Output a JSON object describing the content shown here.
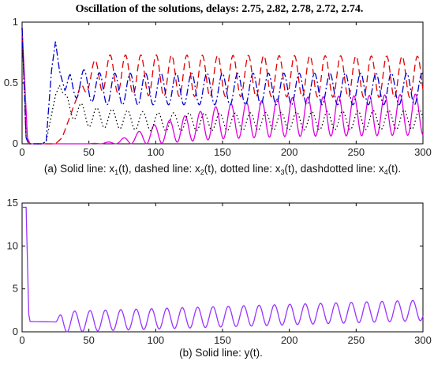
{
  "title": "Oscillation of the solutions, delays: 2.75, 2.82, 2.78, 2.72, 2.74.",
  "caption_a": {
    "prefix": "(a) Solid line: ",
    "x1": "x",
    "s1": "1",
    "arg1": "(t), dashed line: ",
    "x2": "x",
    "s2": "2",
    "arg2": "(t), dotted line: ",
    "x3": "x",
    "s3": "3",
    "arg3": "(t), dashdotted line: ",
    "x4": "x",
    "s4": "4",
    "arg4": "(t)."
  },
  "caption_b": "(b) Solid line: y(t).",
  "colors": {
    "x1": "#e000e0",
    "x2": "#e00000",
    "x3": "#000000",
    "x4": "#0000cc",
    "y": "#9933ff"
  },
  "chart_data": [
    {
      "type": "line",
      "panel": "a",
      "xlim": [
        0,
        300
      ],
      "ylim": [
        0,
        1
      ],
      "xticks": [
        0,
        50,
        100,
        150,
        200,
        250,
        300
      ],
      "yticks": [
        0,
        0.5,
        1
      ],
      "ytick_labels": [
        "0",
        "0.5",
        "1"
      ],
      "grid": false,
      "period": 11.5,
      "series": [
        {
          "key": "x1",
          "style": "solid",
          "points": [
            [
              0,
              0.95
            ],
            [
              2,
              0.5
            ],
            [
              4,
              0.05
            ],
            [
              6,
              0
            ],
            [
              50,
              0
            ],
            [
              70,
              0.01
            ],
            [
              100,
              0.08
            ],
            [
              150,
              0.18
            ],
            [
              200,
              0.22
            ],
            [
              300,
              0.24
            ]
          ],
          "amplitude": [
            [
              0,
              0
            ],
            [
              50,
              0
            ],
            [
              70,
              0.01
            ],
            [
              100,
              0.08
            ],
            [
              150,
              0.14
            ],
            [
              200,
              0.16
            ],
            [
              300,
              0.17
            ]
          ],
          "osc_start": 50
        },
        {
          "key": "x2",
          "style": "dashed",
          "points": [
            [
              0,
              0.95
            ],
            [
              3,
              0.05
            ],
            [
              5,
              0
            ],
            [
              25,
              0
            ],
            [
              30,
              0.05
            ],
            [
              40,
              0.35
            ],
            [
              50,
              0.55
            ],
            [
              60,
              0.58
            ],
            [
              100,
              0.56
            ],
            [
              300,
              0.55
            ]
          ],
          "amplitude": [
            [
              0,
              0
            ],
            [
              40,
              0
            ],
            [
              45,
              0.08
            ],
            [
              60,
              0.15
            ],
            [
              100,
              0.17
            ],
            [
              300,
              0.17
            ]
          ],
          "osc_start": 40
        },
        {
          "key": "x3",
          "style": "dotted",
          "points": [
            [
              0,
              0.95
            ],
            [
              3,
              0.05
            ],
            [
              5,
              0
            ],
            [
              15,
              0
            ],
            [
              18,
              0.02
            ],
            [
              25,
              0.4
            ],
            [
              28,
              0.48
            ],
            [
              35,
              0.3
            ],
            [
              50,
              0.22
            ],
            [
              100,
              0.18
            ],
            [
              150,
              0.18
            ],
            [
              300,
              0.2
            ]
          ],
          "amplitude": [
            [
              0,
              0
            ],
            [
              30,
              0
            ],
            [
              35,
              0.08
            ],
            [
              60,
              0.08
            ],
            [
              150,
              0.07
            ],
            [
              300,
              0.08
            ]
          ],
          "osc_start": 30
        },
        {
          "key": "x4",
          "style": "dashdot",
          "points": [
            [
              0,
              0.95
            ],
            [
              3,
              0.05
            ],
            [
              5,
              0
            ],
            [
              15,
              0
            ],
            [
              18,
              0.02
            ],
            [
              22,
              0.6
            ],
            [
              25,
              0.84
            ],
            [
              28,
              0.6
            ],
            [
              32,
              0.44
            ],
            [
              40,
              0.5
            ],
            [
              60,
              0.45
            ],
            [
              100,
              0.45
            ],
            [
              300,
              0.45
            ]
          ],
          "amplitude": [
            [
              0,
              0
            ],
            [
              32,
              0
            ],
            [
              36,
              0.12
            ],
            [
              60,
              0.13
            ],
            [
              300,
              0.13
            ]
          ],
          "osc_start": 32
        }
      ]
    },
    {
      "type": "line",
      "panel": "b",
      "xlim": [
        0,
        300
      ],
      "ylim": [
        0,
        15
      ],
      "xticks": [
        0,
        50,
        100,
        150,
        200,
        250,
        300
      ],
      "yticks": [
        0,
        5,
        10,
        15
      ],
      "ytick_labels": [
        "0",
        "5",
        "10",
        "15"
      ],
      "grid": false,
      "period": 11.5,
      "series": [
        {
          "key": "y",
          "style": "solid",
          "points": [
            [
              0,
              14.5
            ],
            [
              3,
              14.5
            ],
            [
              5,
              2
            ],
            [
              6,
              1.2
            ],
            [
              25,
              1.15
            ],
            [
              300,
              2.5
            ]
          ],
          "amplitude": [
            [
              0,
              0
            ],
            [
              25,
              0
            ],
            [
              30,
              1.2
            ],
            [
              300,
              1.2
            ]
          ],
          "osc_start": 25
        }
      ]
    }
  ]
}
